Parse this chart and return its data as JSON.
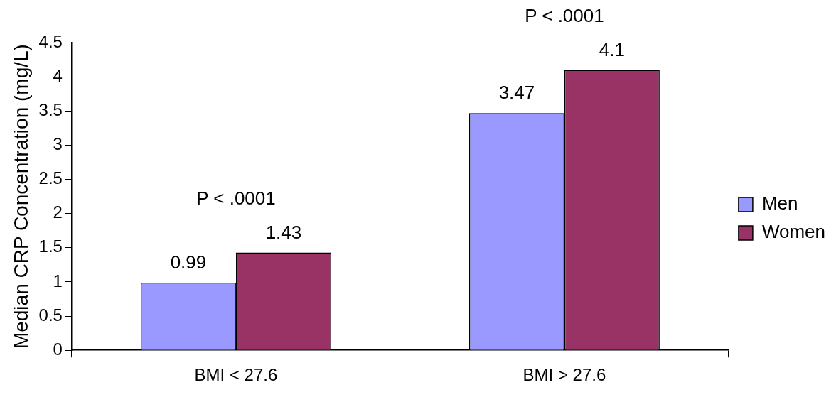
{
  "chart_data": {
    "type": "bar",
    "ylabel": "Median CRP Concentration (mg/L)",
    "categories": [
      "BMI < 27.6",
      "BMI > 27.6"
    ],
    "series": [
      {
        "name": "Men",
        "color": "#9999ff",
        "values": [
          0.99,
          3.47
        ]
      },
      {
        "name": "Women",
        "color": "#993366",
        "values": [
          1.43,
          4.1
        ]
      }
    ],
    "ylim": [
      0,
      4.5
    ],
    "yticks": [
      0,
      0.5,
      1,
      1.5,
      2,
      2.5,
      3,
      3.5,
      4,
      4.5
    ],
    "grid": false,
    "legend": "right",
    "data_labels": true,
    "annotations": [
      "P < .0001",
      "P < .0001"
    ]
  }
}
